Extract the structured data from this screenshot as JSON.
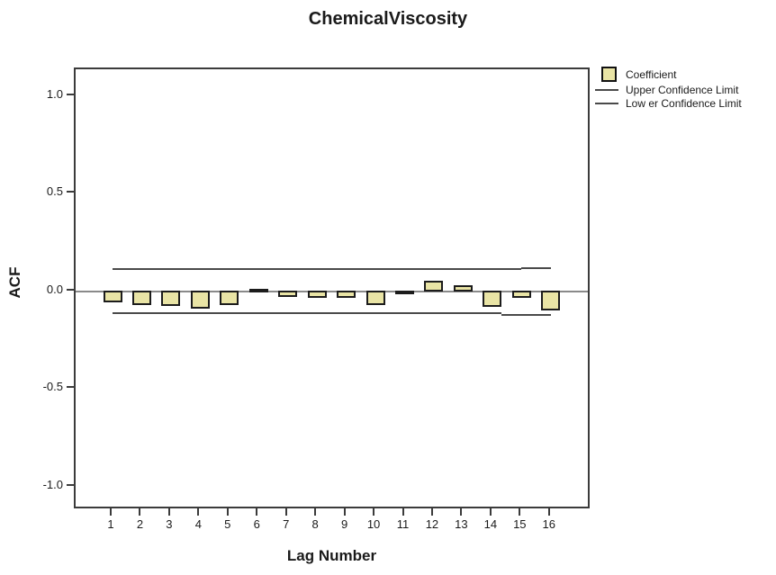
{
  "title": "ChemicalViscosity",
  "colors": {
    "bar_fill": "#e9e4a5",
    "bar_border": "#1c1c1c",
    "confidence_line": "#4a4a4a",
    "zero_line": "#8a8a8a",
    "axis_box": "#3b3b3b"
  },
  "legend": {
    "coefficient_label": "Coefficient",
    "upper_label": "Upper Confidence Limit",
    "lower_label": "Low er Confidence Limit"
  },
  "chart_data": {
    "type": "bar",
    "title": "ChemicalViscosity",
    "xlabel": "Lag Number",
    "ylabel": "ACF",
    "legend_position": "top-right outside",
    "grid": false,
    "x": [
      1,
      2,
      3,
      4,
      5,
      6,
      7,
      8,
      9,
      10,
      11,
      12,
      13,
      14,
      15,
      16
    ],
    "xtick_labels": [
      "1",
      "2",
      "3",
      "4",
      "5",
      "6",
      "7",
      "8",
      "9",
      "10",
      "11",
      "12",
      "13",
      "14",
      "15",
      "16"
    ],
    "values": [
      -0.052,
      -0.065,
      -0.07,
      -0.085,
      -0.065,
      0.008,
      -0.026,
      -0.028,
      -0.032,
      -0.068,
      -0.012,
      0.048,
      0.024,
      -0.077,
      -0.03,
      -0.095
    ],
    "ytick_values": [
      1.0,
      0.5,
      0.0,
      -0.5,
      -1.0
    ],
    "ytick_labels": [
      "1.0",
      "0.5",
      "0.0",
      "-0.5",
      "-1.0"
    ],
    "ylim": [
      -1.14,
      1.14
    ],
    "series_name": "Coefficient",
    "confidence_limits": {
      "upper_value": 0.11,
      "lower_value": -0.11,
      "upper_segments": [
        {
          "from_lag": 1.0,
          "to_lag": 15.0,
          "value": 0.112
        },
        {
          "from_lag": 15.0,
          "to_lag": 16.0,
          "value": 0.118
        }
      ],
      "lower_segments": [
        {
          "from_lag": 1.0,
          "to_lag": 6.0,
          "value": -0.112
        },
        {
          "from_lag": 6.0,
          "to_lag": 14.3,
          "value": -0.115
        },
        {
          "from_lag": 14.3,
          "to_lag": 16.0,
          "value": -0.122
        }
      ]
    }
  }
}
